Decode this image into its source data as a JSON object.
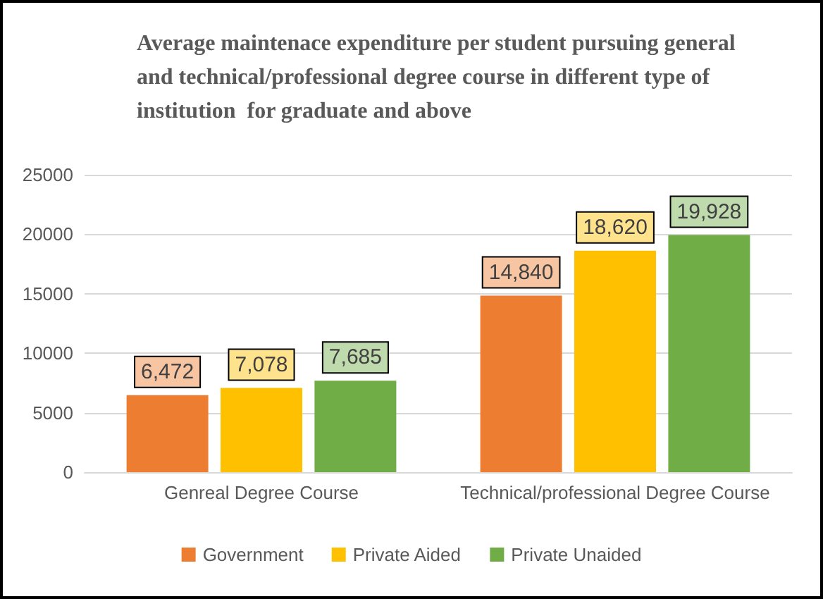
{
  "chart_data": {
    "type": "bar",
    "title": "Average maintenace expenditure per student pursuing general and technical/professional degree course in different type of institution  for graduate and above",
    "categories": [
      "Genreal Degree Course",
      "Technical/professional Degree Course"
    ],
    "series": [
      {
        "name": "Government",
        "color": "#ed7d31",
        "values": [
          6472,
          14840
        ],
        "value_labels": [
          "6,472",
          "14,840"
        ]
      },
      {
        "name": "Private Aided",
        "color": "#ffc000",
        "values": [
          7078,
          18620
        ],
        "value_labels": [
          "7,078",
          "18,620"
        ]
      },
      {
        "name": "Private Unaided",
        "color": "#70ad47",
        "values": [
          7685,
          19928
        ],
        "value_labels": [
          "7,685",
          "19,928"
        ]
      }
    ],
    "ylim": [
      0,
      25000
    ],
    "yticks": [
      0,
      5000,
      10000,
      15000,
      20000,
      25000
    ],
    "grid": "y",
    "legend": "bottom"
  }
}
